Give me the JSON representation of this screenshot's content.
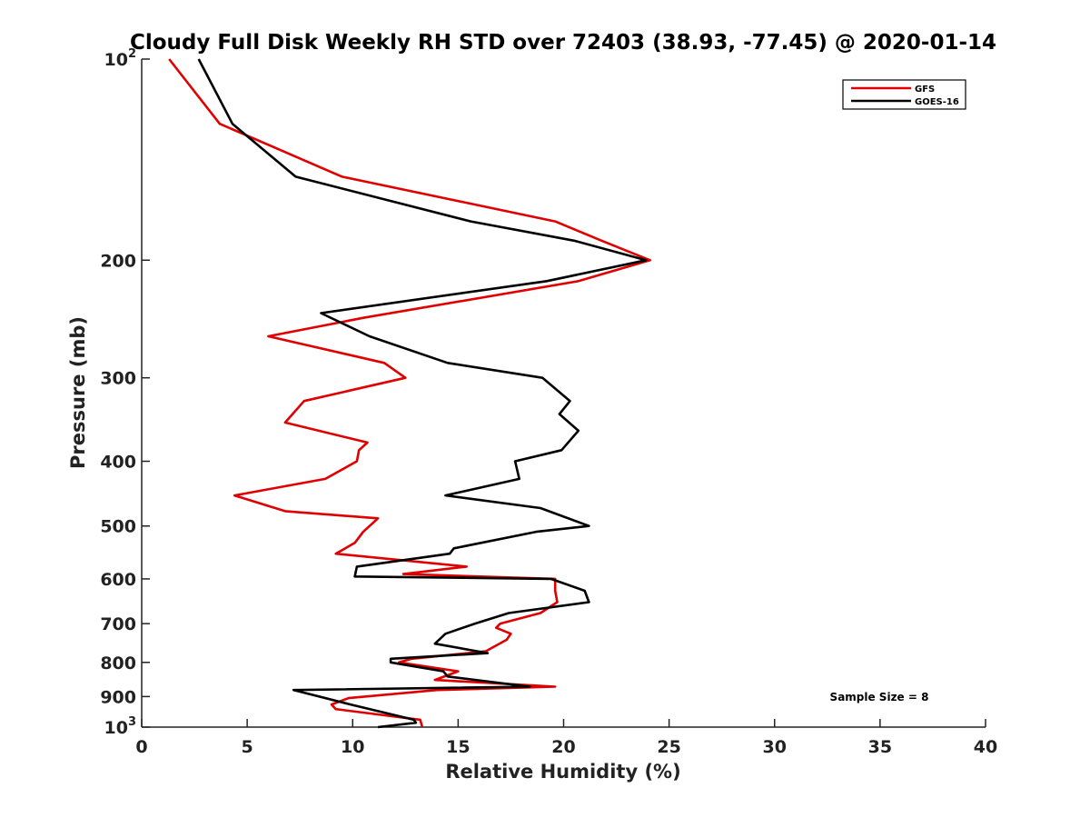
{
  "chart_data": {
    "type": "line",
    "title": "Cloudy Full Disk Weekly RH STD over 72403 (38.93, -77.45) @ 2020-01-14",
    "xlabel": "Relative Humidity (%)",
    "ylabel": "Pressure (mb)",
    "xlim": [
      0,
      40
    ],
    "ylim": [
      100,
      1000
    ],
    "y_scale": "log",
    "y_reversed": true,
    "x_ticks": [
      "0",
      "5",
      "10",
      "15",
      "20",
      "25",
      "30",
      "35",
      "40"
    ],
    "y_ticks": [
      {
        "value": 100,
        "label": "10",
        "sup": "2"
      },
      {
        "value": 200,
        "label": "200",
        "sup": ""
      },
      {
        "value": 300,
        "label": "300",
        "sup": ""
      },
      {
        "value": 400,
        "label": "400",
        "sup": ""
      },
      {
        "value": 500,
        "label": "500",
        "sup": ""
      },
      {
        "value": 600,
        "label": "600",
        "sup": ""
      },
      {
        "value": 700,
        "label": "700",
        "sup": ""
      },
      {
        "value": 800,
        "label": "800",
        "sup": ""
      },
      {
        "value": 900,
        "label": "900",
        "sup": ""
      },
      {
        "value": 1000,
        "label": "10",
        "sup": "3"
      }
    ],
    "grid": false,
    "legend_position": "top-right",
    "annotation": "Sample Size = 8",
    "series": [
      {
        "name": "GFS",
        "color": "#e00000",
        "points": [
          [
            1.3,
            100
          ],
          [
            3.7,
            125
          ],
          [
            9.5,
            150
          ],
          [
            19.6,
            175
          ],
          [
            21.8,
            187
          ],
          [
            24.1,
            200
          ],
          [
            20.7,
            215
          ],
          [
            10.5,
            244
          ],
          [
            6.0,
            260
          ],
          [
            11.5,
            285
          ],
          [
            12.5,
            300
          ],
          [
            7.7,
            325
          ],
          [
            6.8,
            350
          ],
          [
            10.7,
            375
          ],
          [
            10.3,
            385
          ],
          [
            10.2,
            400
          ],
          [
            8.7,
            425
          ],
          [
            4.4,
            450
          ],
          [
            6.8,
            475
          ],
          [
            11.2,
            487
          ],
          [
            10.5,
            510
          ],
          [
            10.1,
            530
          ],
          [
            9.2,
            550
          ],
          [
            15.4,
            575
          ],
          [
            12.4,
            590
          ],
          [
            19.6,
            600
          ],
          [
            19.6,
            625
          ],
          [
            19.7,
            650
          ],
          [
            18.9,
            675
          ],
          [
            17.0,
            700
          ],
          [
            16.8,
            710
          ],
          [
            17.5,
            725
          ],
          [
            17.3,
            740
          ],
          [
            16.3,
            770
          ],
          [
            12.8,
            790
          ],
          [
            12.2,
            800
          ],
          [
            15.0,
            825
          ],
          [
            13.9,
            850
          ],
          [
            19.6,
            870
          ],
          [
            14.0,
            880
          ],
          [
            9.8,
            905
          ],
          [
            9.0,
            925
          ],
          [
            9.2,
            940
          ],
          [
            13.2,
            975
          ],
          [
            13.3,
            1000
          ]
        ]
      },
      {
        "name": "GOES-16",
        "color": "#000000",
        "points": [
          [
            2.7,
            100
          ],
          [
            4.3,
            125
          ],
          [
            7.3,
            150
          ],
          [
            15.6,
            175
          ],
          [
            20.5,
            187
          ],
          [
            23.9,
            200
          ],
          [
            19.2,
            215
          ],
          [
            8.5,
            240
          ],
          [
            10.8,
            260
          ],
          [
            14.5,
            285
          ],
          [
            19.0,
            300
          ],
          [
            20.3,
            325
          ],
          [
            19.8,
            340
          ],
          [
            20.7,
            360
          ],
          [
            19.9,
            385
          ],
          [
            17.7,
            400
          ],
          [
            17.9,
            425
          ],
          [
            14.4,
            450
          ],
          [
            18.9,
            470
          ],
          [
            21.2,
            500
          ],
          [
            18.7,
            510
          ],
          [
            14.8,
            540
          ],
          [
            14.6,
            550
          ],
          [
            10.2,
            575
          ],
          [
            10.1,
            595
          ],
          [
            19.4,
            600
          ],
          [
            21.0,
            625
          ],
          [
            21.2,
            650
          ],
          [
            17.4,
            675
          ],
          [
            15.8,
            700
          ],
          [
            14.4,
            725
          ],
          [
            13.9,
            750
          ],
          [
            16.4,
            775
          ],
          [
            11.8,
            790
          ],
          [
            11.8,
            800
          ],
          [
            14.3,
            825
          ],
          [
            14.5,
            840
          ],
          [
            18.4,
            870
          ],
          [
            7.2,
            880
          ],
          [
            9.9,
            925
          ],
          [
            12.9,
            975
          ],
          [
            13.0,
            985
          ],
          [
            11.2,
            1000
          ]
        ]
      }
    ]
  }
}
